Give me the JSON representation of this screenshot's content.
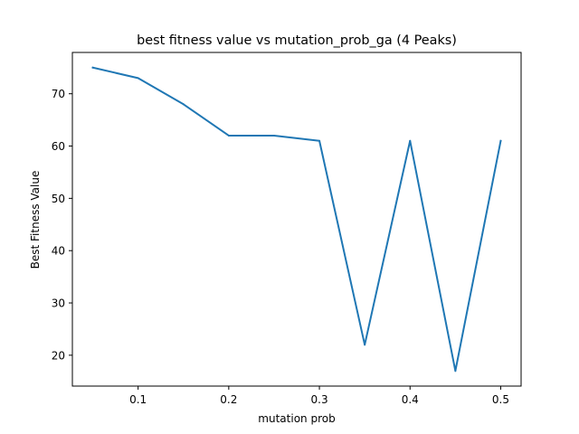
{
  "chart_data": {
    "type": "line",
    "title": "best fitness value vs mutation_prob_ga (4 Peaks)",
    "xlabel": "mutation prob",
    "ylabel": "Best Fitness Value",
    "x": [
      0.05,
      0.1,
      0.15,
      0.2,
      0.25,
      0.3,
      0.35,
      0.4,
      0.45,
      0.5
    ],
    "series": [
      {
        "values": [
          75,
          73,
          68,
          62,
          62,
          61,
          22,
          61,
          17,
          61
        ],
        "color": "#1f77b4"
      }
    ],
    "xlim": [
      0.0275,
      0.5225
    ],
    "ylim": [
      14.1,
      77.9
    ],
    "xticks": [
      0.1,
      0.2,
      0.3,
      0.4,
      0.5
    ],
    "xtick_labels": [
      "0.1",
      "0.2",
      "0.3",
      "0.4",
      "0.5"
    ],
    "yticks": [
      20,
      30,
      40,
      50,
      60,
      70
    ],
    "ytick_labels": [
      "20",
      "30",
      "40",
      "50",
      "60",
      "70"
    ],
    "grid": false,
    "legend": "none"
  }
}
